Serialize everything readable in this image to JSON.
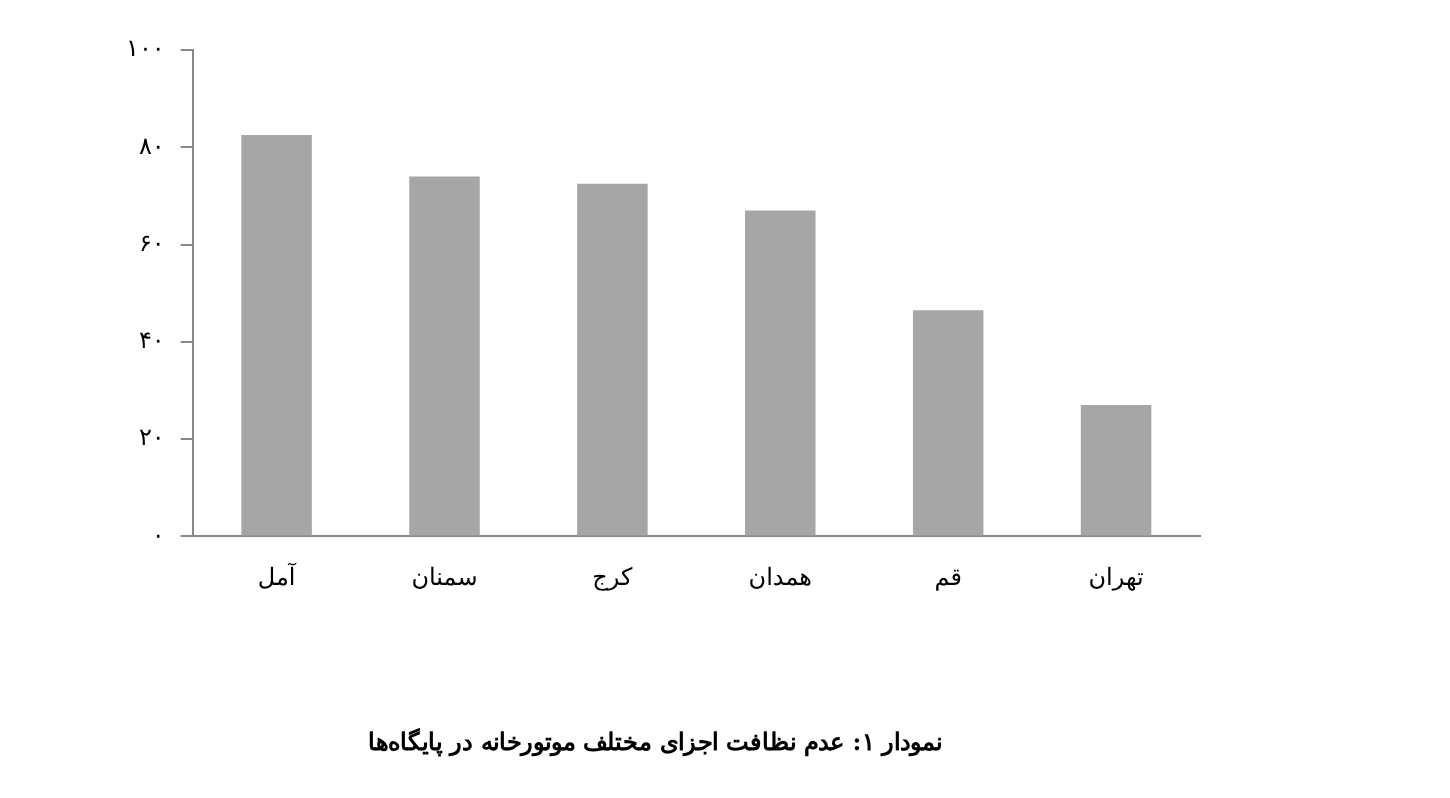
{
  "chart_data": {
    "type": "bar",
    "title": "نمودار ۱: عدم نظافت اجزای مختلف موتورخانه در پایگاه‌ها",
    "categories": [
      "آمل",
      "سمنان",
      "کرج",
      "همدان",
      "قم",
      "تهران"
    ],
    "values": [
      82.5,
      74,
      72.5,
      67,
      46.5,
      27
    ],
    "color": "#a6a6a6",
    "ylim": [
      0,
      100
    ],
    "yticks": [
      {
        "value": 0,
        "label": "۰"
      },
      {
        "value": 20,
        "label": "۲۰"
      },
      {
        "value": 40,
        "label": "۴۰"
      },
      {
        "value": 60,
        "label": "۶۰"
      },
      {
        "value": 80,
        "label": "۸۰"
      },
      {
        "value": 100,
        "label": "۱۰۰"
      }
    ],
    "grid": false,
    "legend": false
  }
}
